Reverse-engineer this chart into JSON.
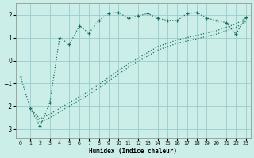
{
  "xlabel": "Humidex (Indice chaleur)",
  "bg_color": "#cceee8",
  "grid_color": "#99cccc",
  "line_color": "#1a6e60",
  "xlim": [
    -0.5,
    23.5
  ],
  "ylim": [
    -3.4,
    2.5
  ],
  "xticks": [
    0,
    1,
    2,
    3,
    4,
    5,
    6,
    7,
    8,
    9,
    10,
    11,
    12,
    13,
    14,
    15,
    16,
    17,
    18,
    19,
    20,
    21,
    22,
    23
  ],
  "yticks": [
    -3,
    -2,
    -1,
    0,
    1,
    2
  ],
  "line1_x": [
    1,
    2,
    3,
    4,
    5,
    6,
    7,
    8,
    9,
    10,
    11,
    12,
    13,
    14,
    15,
    16,
    17,
    18,
    19,
    20,
    21,
    22,
    23
  ],
  "line1_y": [
    -2.1,
    -2.55,
    -2.35,
    -2.1,
    -1.85,
    -1.6,
    -1.35,
    -1.05,
    -0.75,
    -0.45,
    -0.15,
    0.1,
    0.35,
    0.6,
    0.75,
    0.9,
    1.0,
    1.1,
    1.2,
    1.3,
    1.45,
    1.6,
    1.85
  ],
  "line2_x": [
    1,
    2,
    3,
    4,
    5,
    6,
    7,
    8,
    9,
    10,
    11,
    12,
    13,
    14,
    15,
    16,
    17,
    18,
    19,
    20,
    21,
    22,
    23
  ],
  "line2_y": [
    -2.1,
    -2.7,
    -2.5,
    -2.25,
    -2.0,
    -1.75,
    -1.5,
    -1.2,
    -0.9,
    -0.6,
    -0.3,
    -0.05,
    0.2,
    0.45,
    0.6,
    0.75,
    0.85,
    0.95,
    1.05,
    1.15,
    1.3,
    1.45,
    1.7
  ],
  "line3_x": [
    0,
    1,
    2,
    3,
    4,
    5,
    6,
    7,
    8,
    9,
    10,
    11,
    12,
    13,
    14,
    15,
    16,
    17,
    18,
    19,
    20,
    21,
    22,
    23
  ],
  "line3_y": [
    -0.7,
    -2.1,
    -2.9,
    -1.85,
    1.0,
    0.7,
    1.5,
    1.2,
    1.75,
    2.05,
    2.1,
    1.85,
    1.95,
    2.05,
    1.85,
    1.75,
    1.75,
    2.05,
    2.1,
    1.85,
    1.75,
    1.65,
    1.15,
    1.9
  ]
}
